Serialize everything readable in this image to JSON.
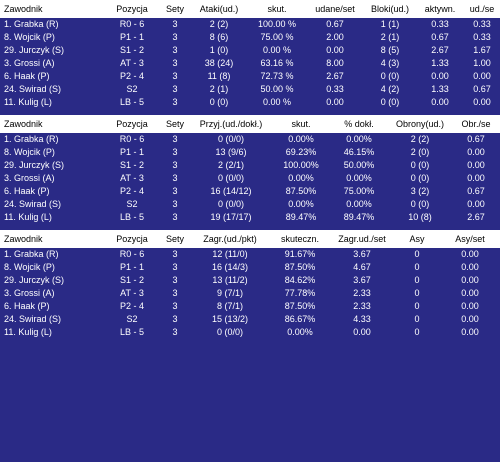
{
  "tables": [
    {
      "headers": [
        "Zawodnik",
        "Pozycja",
        "Sety",
        "Ataki(ud.)",
        "skut.",
        "udane/set",
        "Bloki(ud.)",
        "aktywn.",
        "ud./se"
      ],
      "rows": [
        [
          "1. Grabka (R)",
          "R0 - 6",
          "3",
          "2 (2)",
          "100.00 %",
          "0.67",
          "1 (1)",
          "0.33",
          "0.33"
        ],
        [
          "8. Wojcik (P)",
          "P1 - 1",
          "3",
          "8 (6)",
          "75.00 %",
          "2.00",
          "2 (1)",
          "0.67",
          "0.33"
        ],
        [
          "29. Jurczyk (S)",
          "S1 - 2",
          "3",
          "1 (0)",
          "0.00 %",
          "0.00",
          "8 (5)",
          "2.67",
          "1.67"
        ],
        [
          "3. Grossi (A)",
          "AT - 3",
          "3",
          "38 (24)",
          "63.16 %",
          "8.00",
          "4 (3)",
          "1.33",
          "1.00"
        ],
        [
          "6. Haak (P)",
          "P2 - 4",
          "3",
          "11 (8)",
          "72.73 %",
          "2.67",
          "0 (0)",
          "0.00",
          "0.00"
        ],
        [
          "24. Swirad (S)",
          "S2",
          "3",
          "2 (1)",
          "50.00 %",
          "0.33",
          "4 (2)",
          "1.33",
          "0.67"
        ],
        [
          "11. Kulig (L)",
          "LB - 5",
          "3",
          "0 (0)",
          "0.00 %",
          "0.00",
          "0 (0)",
          "0.00",
          "0.00"
        ]
      ]
    },
    {
      "headers": [
        "Zawodnik",
        "Pozycja",
        "Sety",
        "Przyj.(ud./dokł.)",
        "skut.",
        "% dokł.",
        "Obrony(ud.)",
        "Obr./se"
      ],
      "rows": [
        [
          "1. Grabka (R)",
          "R0 - 6",
          "3",
          "0 (0/0)",
          "0.00%",
          "0.00%",
          "2 (2)",
          "0.67"
        ],
        [
          "8. Wojcik (P)",
          "P1 - 1",
          "3",
          "13 (9/6)",
          "69.23%",
          "46.15%",
          "2 (0)",
          "0.00"
        ],
        [
          "29. Jurczyk (S)",
          "S1 - 2",
          "3",
          "2 (2/1)",
          "100.00%",
          "50.00%",
          "0 (0)",
          "0.00"
        ],
        [
          "3. Grossi (A)",
          "AT - 3",
          "3",
          "0 (0/0)",
          "0.00%",
          "0.00%",
          "0 (0)",
          "0.00"
        ],
        [
          "6. Haak (P)",
          "P2 - 4",
          "3",
          "16 (14/12)",
          "87.50%",
          "75.00%",
          "3 (2)",
          "0.67"
        ],
        [
          "24. Swirad (S)",
          "S2",
          "3",
          "0 (0/0)",
          "0.00%",
          "0.00%",
          "0 (0)",
          "0.00"
        ],
        [
          "11. Kulig (L)",
          "LB - 5",
          "3",
          "19 (17/17)",
          "89.47%",
          "89.47%",
          "10 (8)",
          "2.67"
        ]
      ]
    },
    {
      "headers": [
        "Zawodnik",
        "Pozycja",
        "Sety",
        "Zagr.(ud./pkt)",
        "skuteczn.",
        "Zagr.ud./set",
        "Asy",
        "Asy/set"
      ],
      "rows": [
        [
          "1. Grabka (R)",
          "R0 - 6",
          "3",
          "12 (11/0)",
          "91.67%",
          "3.67",
          "0",
          "0.00"
        ],
        [
          "8. Wojcik (P)",
          "P1 - 1",
          "3",
          "16 (14/3)",
          "87.50%",
          "4.67",
          "0",
          "0.00"
        ],
        [
          "29. Jurczyk (S)",
          "S1 - 2",
          "3",
          "13 (11/2)",
          "84.62%",
          "3.67",
          "0",
          "0.00"
        ],
        [
          "3. Grossi (A)",
          "AT - 3",
          "3",
          "9 (7/1)",
          "77.78%",
          "2.33",
          "0",
          "0.00"
        ],
        [
          "6. Haak (P)",
          "P2 - 4",
          "3",
          "8 (7/1)",
          "87.50%",
          "2.33",
          "0",
          "0.00"
        ],
        [
          "24. Swirad (S)",
          "S2",
          "3",
          "15 (13/2)",
          "86.67%",
          "4.33",
          "0",
          "0.00"
        ],
        [
          "11. Kulig (L)",
          "LB - 5",
          "3",
          "0 (0/0)",
          "0.00%",
          "0.00",
          "0",
          "0.00"
        ]
      ]
    }
  ]
}
